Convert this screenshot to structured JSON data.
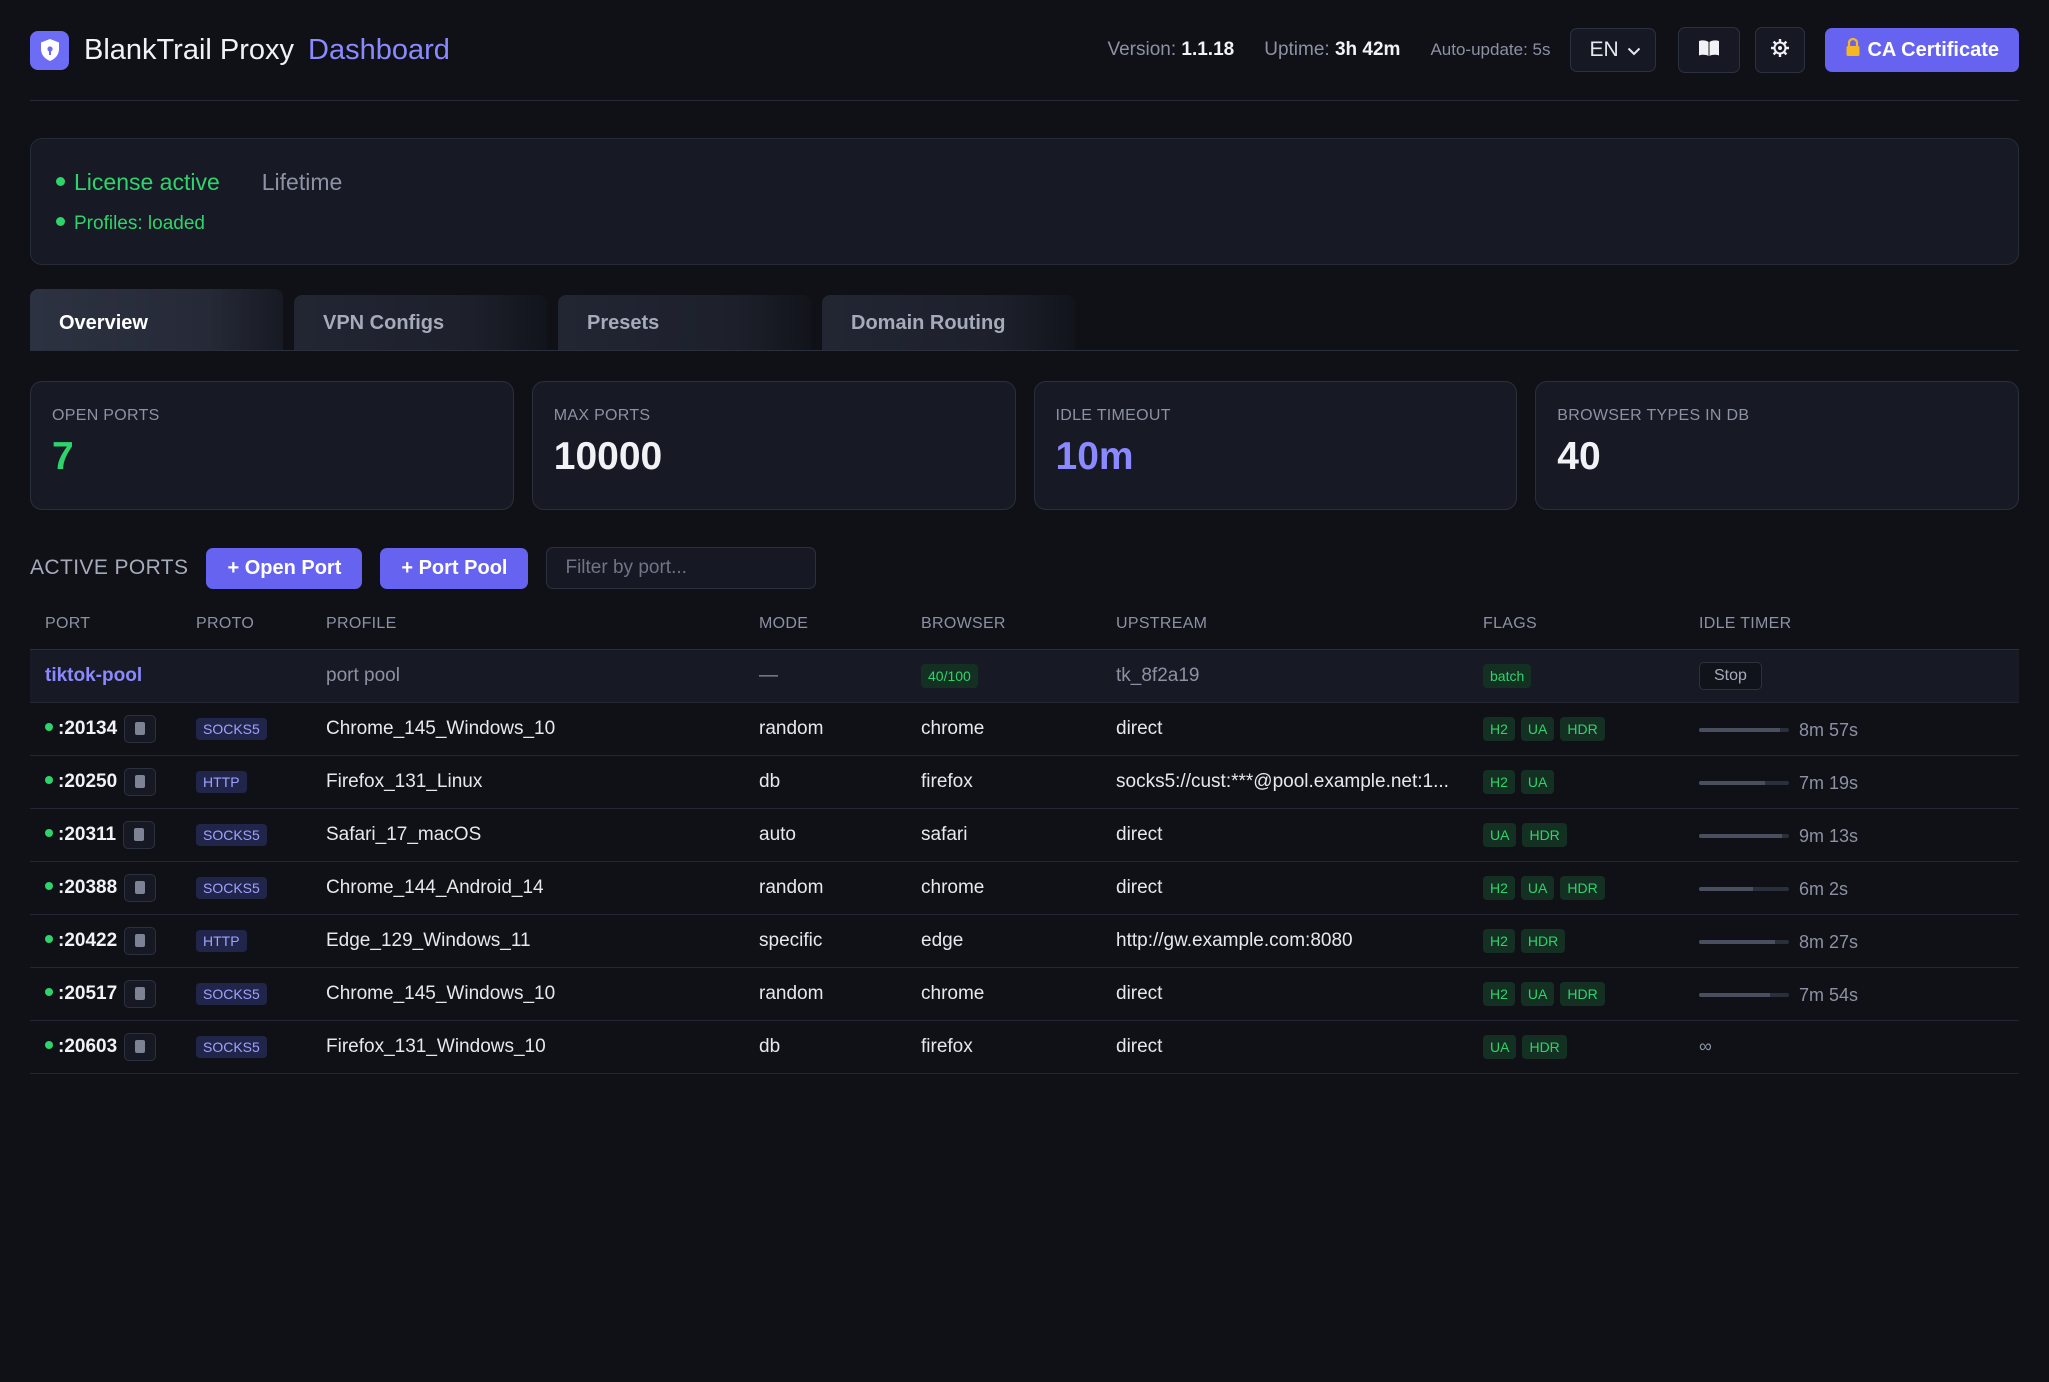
{
  "header": {
    "brand": "BlankTrail Proxy",
    "sub": "Dashboard",
    "version_label": "Version:",
    "version": "1.1.18",
    "uptime_label": "Uptime:",
    "uptime": "3h 42m",
    "autoupdate": "Auto-update: 5s",
    "language": "EN",
    "ca_button": "CA Certificate",
    "icons": {
      "logo": "shield-icon",
      "docs": "book-icon",
      "settings": "gear-icon",
      "ca": "lock-icon"
    }
  },
  "license": {
    "status": "License active",
    "plan": "Lifetime",
    "profiles": "Profiles: loaded"
  },
  "tabs": [
    {
      "label": "Overview",
      "active": true
    },
    {
      "label": "VPN Configs",
      "active": false
    },
    {
      "label": "Presets",
      "active": false
    },
    {
      "label": "Domain Routing",
      "active": false
    }
  ],
  "stats": [
    {
      "label": "OPEN PORTS",
      "value": "7"
    },
    {
      "label": "MAX PORTS",
      "value": "10000"
    },
    {
      "label": "IDLE TIMEOUT",
      "value": "10m"
    },
    {
      "label": "BROWSER TYPES IN DB",
      "value": "40"
    }
  ],
  "ports": {
    "title": "ACTIVE PORTS",
    "open_button": "+ Open Port",
    "pool_button": "+ Port Pool",
    "filter_placeholder": "Filter by port...",
    "columns": [
      "PORT",
      "PROTO",
      "PROFILE",
      "MODE",
      "BROWSER",
      "UPSTREAM",
      "FLAGS",
      "IDLE TIMER"
    ],
    "pool": {
      "name": "tiktok-pool",
      "profile": "port pool",
      "mode": "—",
      "browser": "40/100",
      "upstream": "tk_8f2a19",
      "flag": "batch",
      "action": "Stop"
    },
    "rows": [
      {
        "port": ":20134",
        "proto": "SOCKS5",
        "profile": "Chrome_145_Windows_10",
        "mode": "random",
        "browser": "chrome",
        "upstream": "direct",
        "flags": [
          "H2",
          "UA",
          "HDR"
        ],
        "timer": "8m 57s"
      },
      {
        "port": ":20250",
        "proto": "HTTP",
        "profile": "Firefox_131_Linux",
        "mode": "db",
        "browser": "firefox",
        "upstream": "socks5://cust:***@pool.example.net:1...",
        "flags": [
          "H2",
          "UA"
        ],
        "timer": "7m 19s"
      },
      {
        "port": ":20311",
        "proto": "SOCKS5",
        "profile": "Safari_17_macOS",
        "mode": "auto",
        "browser": "safari",
        "upstream": "direct",
        "flags": [
          "UA",
          "HDR"
        ],
        "timer": "9m 13s"
      },
      {
        "port": ":20388",
        "proto": "SOCKS5",
        "profile": "Chrome_144_Android_14",
        "mode": "random",
        "browser": "chrome",
        "upstream": "direct",
        "flags": [
          "H2",
          "UA",
          "HDR"
        ],
        "timer": "6m 2s"
      },
      {
        "port": ":20422",
        "proto": "HTTP",
        "profile": "Edge_129_Windows_11",
        "mode": "specific",
        "browser": "edge",
        "upstream": "http://gw.example.com:8080",
        "flags": [
          "H2",
          "HDR"
        ],
        "timer": "8m 27s"
      },
      {
        "port": ":20517",
        "proto": "SOCKS5",
        "profile": "Chrome_145_Windows_10",
        "mode": "random",
        "browser": "chrome",
        "upstream": "direct",
        "flags": [
          "H2",
          "UA",
          "HDR"
        ],
        "timer": "7m 54s"
      },
      {
        "port": ":20603",
        "proto": "SOCKS5",
        "profile": "Firefox_131_Windows_10",
        "mode": "db",
        "browser": "firefox",
        "upstream": "direct",
        "flags": [
          "UA",
          "HDR"
        ],
        "timer": "∞"
      }
    ]
  },
  "colors": {
    "accent": "#6563f0",
    "success": "#2fd36b",
    "background": "#0f1117",
    "panel": "#171a24"
  }
}
